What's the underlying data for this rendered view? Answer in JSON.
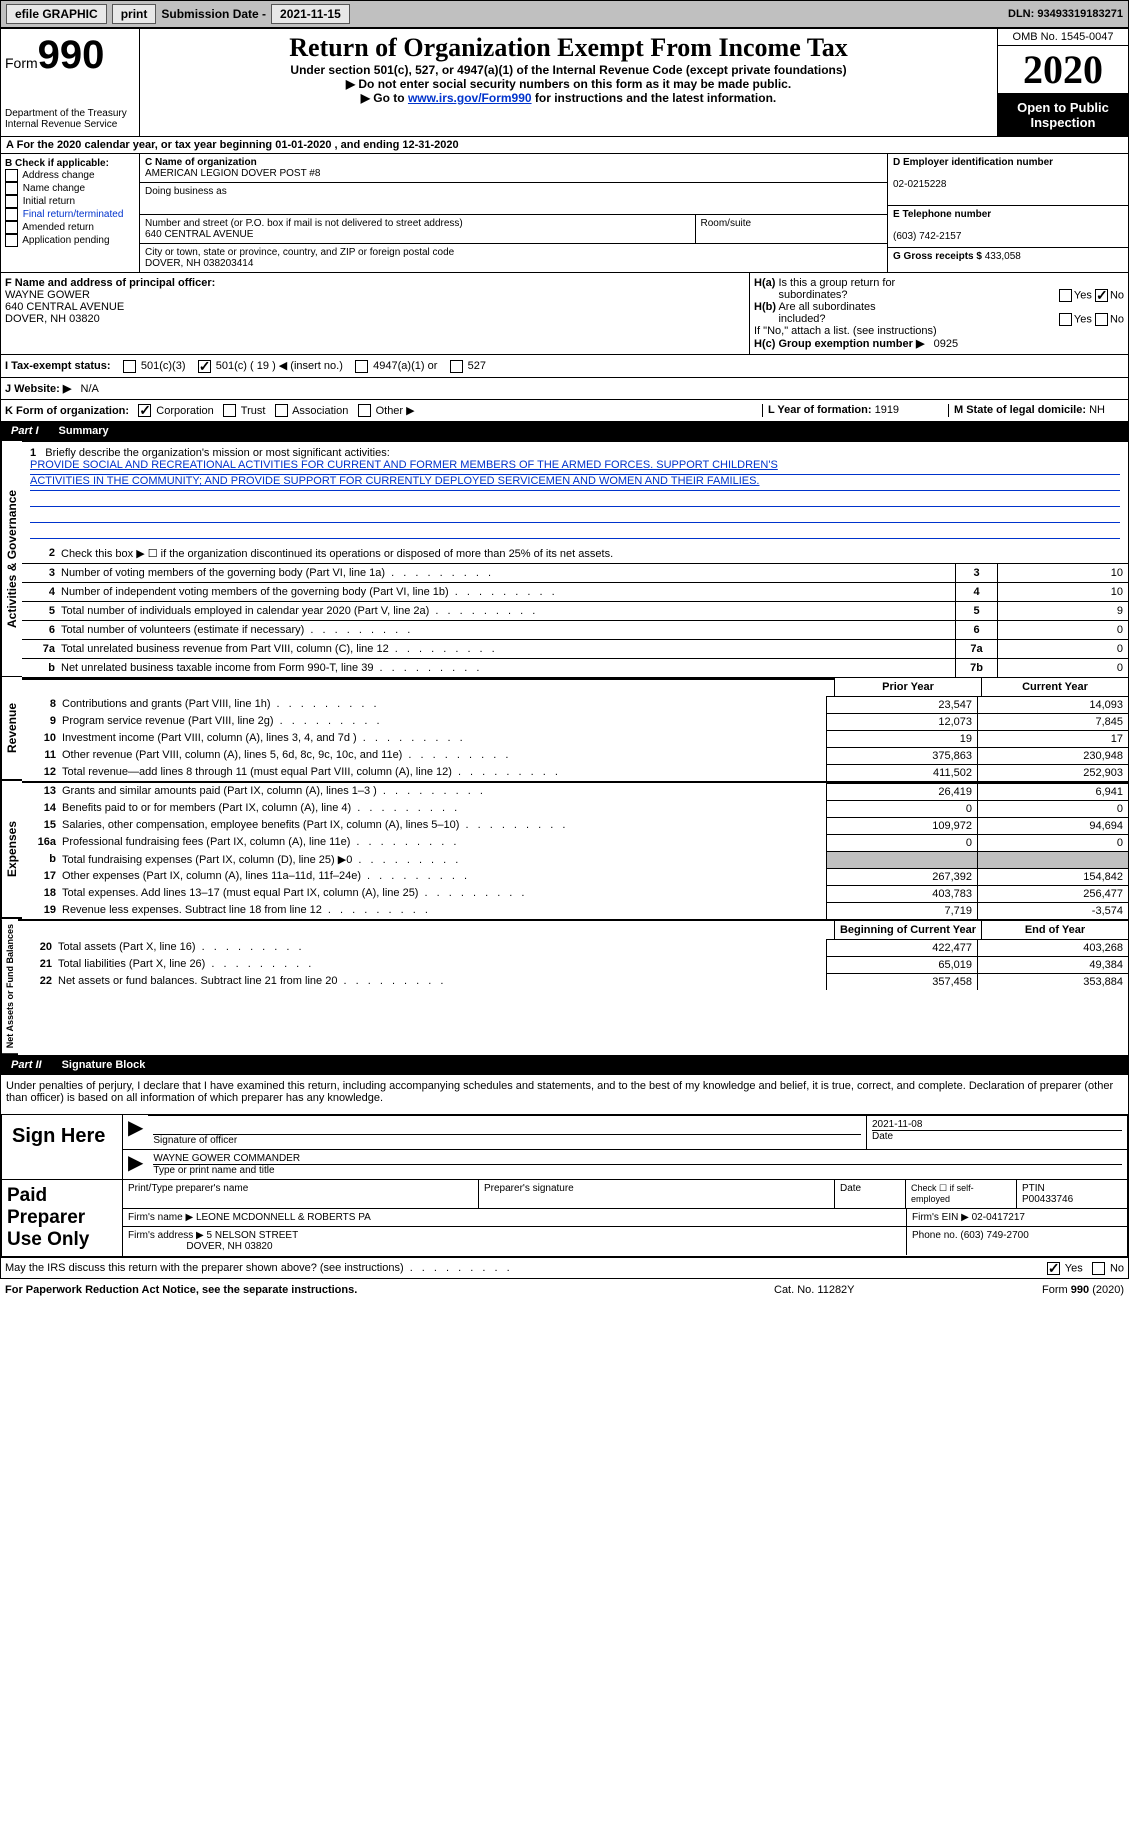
{
  "topbar": {
    "efile": "efile GRAPHIC",
    "print": "print",
    "subdate_label": "Submission Date -",
    "subdate": "2021-11-15",
    "dln_label": "DLN:",
    "dln": "93493319183271"
  },
  "header": {
    "form_word": "Form",
    "form_num": "990",
    "dept": "Department of the Treasury\nInternal Revenue Service",
    "title": "Return of Organization Exempt From Income Tax",
    "sub1": "Under section 501(c), 527, or 4947(a)(1) of the Internal Revenue Code (except private foundations)",
    "sub2": "▶ Do not enter social security numbers on this form as it may be made public.",
    "sub3_pre": "▶ Go to ",
    "sub3_link": "www.irs.gov/Form990",
    "sub3_post": " for instructions and the latest information.",
    "omb": "OMB No. 1545-0047",
    "year": "2020",
    "openpublic": "Open to Public Inspection"
  },
  "period": {
    "line": "For the 2020 calendar year, or tax year beginning 01-01-2020   , and ending 12-31-2020",
    "a_label": "A"
  },
  "boxB": {
    "label": "B Check if applicable:",
    "opts": [
      "Address change",
      "Name change",
      "Initial return",
      "Final return/terminated",
      "Amended return",
      "Application pending"
    ]
  },
  "boxC": {
    "name_label": "C Name of organization",
    "name": "AMERICAN LEGION DOVER POST #8",
    "dba_label": "Doing business as",
    "addr_label": "Number and street (or P.O. box if mail is not delivered to street address)",
    "room_label": "Room/suite",
    "addr": "640 CENTRAL AVENUE",
    "city_label": "City or town, state or province, country, and ZIP or foreign postal code",
    "city": "DOVER, NH  038203414"
  },
  "boxD": {
    "ein_label": "D Employer identification number",
    "ein": "02-0215228",
    "phone_label": "E Telephone number",
    "phone": "(603) 742-2157",
    "gross_label": "G Gross receipts $",
    "gross": "433,058"
  },
  "boxF": {
    "label": "F Name and address of principal officer:",
    "name": "WAYNE GOWER",
    "addr1": "640 CENTRAL AVENUE",
    "addr2": "DOVER, NH  03820"
  },
  "boxH": {
    "a_label": "H(a)  Is this a group return for subordinates?",
    "b_label": "H(b)  Are all subordinates included?",
    "b_note": "If \"No,\" attach a list. (see instructions)",
    "c_label": "H(c)  Group exemption number ▶",
    "c_val": "0925",
    "yes": "Yes",
    "no": "No"
  },
  "lineI": {
    "label": "I    Tax-exempt status:",
    "opt1": "501(c)(3)",
    "opt2_pre": "501(c) (",
    "opt2_val": "19",
    "opt2_post": ") ◀ (insert no.)",
    "opt3": "4947(a)(1) or",
    "opt4": "527"
  },
  "lineJ": {
    "label": "J   Website: ▶",
    "val": "N/A"
  },
  "lineK": {
    "label": "K Form of organization:",
    "opts": [
      "Corporation",
      "Trust",
      "Association",
      "Other ▶"
    ],
    "L_label": "L Year of formation:",
    "L_val": "1919",
    "M_label": "M State of legal domicile:",
    "M_val": "NH"
  },
  "partI": {
    "part": "Part I",
    "title": "Summary"
  },
  "mission": {
    "num": "1",
    "label": "Briefly describe the organization's mission or most significant activities:",
    "line1": "PROVIDE SOCIAL AND RECREATIONAL ACTIVITIES FOR CURRENT AND FORMER MEMBERS OF THE ARMED FORCES. SUPPORT CHILDREN'S",
    "line2": "ACTIVITIES IN THE COMMUNITY; AND PROVIDE SUPPORT FOR CURRENTLY DEPLOYED SERVICEMEN AND WOMEN AND THEIR FAMILIES."
  },
  "gov_lines": [
    {
      "n": "2",
      "desc": "Check this box ▶ ☐ if the organization discontinued its operations or disposed of more than 25% of its net assets.",
      "box": "",
      "val": ""
    },
    {
      "n": "3",
      "desc": "Number of voting members of the governing body (Part VI, line 1a)",
      "box": "3",
      "val": "10"
    },
    {
      "n": "4",
      "desc": "Number of independent voting members of the governing body (Part VI, line 1b)",
      "box": "4",
      "val": "10"
    },
    {
      "n": "5",
      "desc": "Total number of individuals employed in calendar year 2020 (Part V, line 2a)",
      "box": "5",
      "val": "9"
    },
    {
      "n": "6",
      "desc": "Total number of volunteers (estimate if necessary)",
      "box": "6",
      "val": "0"
    },
    {
      "n": "7a",
      "desc": "Total unrelated business revenue from Part VIII, column (C), line 12",
      "box": "7a",
      "val": "0"
    },
    {
      "n": "b",
      "desc": "Net unrelated business taxable income from Form 990-T, line 39",
      "box": "7b",
      "val": "0"
    }
  ],
  "rev_header": {
    "prior": "Prior Year",
    "current": "Current Year"
  },
  "revenue_label": "Revenue",
  "revenue": [
    {
      "n": "8",
      "desc": "Contributions and grants (Part VIII, line 1h)",
      "p": "23,547",
      "c": "14,093"
    },
    {
      "n": "9",
      "desc": "Program service revenue (Part VIII, line 2g)",
      "p": "12,073",
      "c": "7,845"
    },
    {
      "n": "10",
      "desc": "Investment income (Part VIII, column (A), lines 3, 4, and 7d )",
      "p": "19",
      "c": "17"
    },
    {
      "n": "11",
      "desc": "Other revenue (Part VIII, column (A), lines 5, 6d, 8c, 9c, 10c, and 11e)",
      "p": "375,863",
      "c": "230,948"
    },
    {
      "n": "12",
      "desc": "Total revenue—add lines 8 through 11 (must equal Part VIII, column (A), line 12)",
      "p": "411,502",
      "c": "252,903"
    }
  ],
  "expenses_label": "Expenses",
  "expenses": [
    {
      "n": "13",
      "desc": "Grants and similar amounts paid (Part IX, column (A), lines 1–3 )",
      "p": "26,419",
      "c": "6,941"
    },
    {
      "n": "14",
      "desc": "Benefits paid to or for members (Part IX, column (A), line 4)",
      "p": "0",
      "c": "0"
    },
    {
      "n": "15",
      "desc": "Salaries, other compensation, employee benefits (Part IX, column (A), lines 5–10)",
      "p": "109,972",
      "c": "94,694"
    },
    {
      "n": "16a",
      "desc": "Professional fundraising fees (Part IX, column (A), line 11e)",
      "p": "0",
      "c": "0"
    },
    {
      "n": "b",
      "desc": "Total fundraising expenses (Part IX, column (D), line 25) ▶0",
      "p": "",
      "c": "",
      "gray": true
    },
    {
      "n": "17",
      "desc": "Other expenses (Part IX, column (A), lines 11a–11d, 11f–24e)",
      "p": "267,392",
      "c": "154,842"
    },
    {
      "n": "18",
      "desc": "Total expenses. Add lines 13–17 (must equal Part IX, column (A), line 25)",
      "p": "403,783",
      "c": "256,477"
    },
    {
      "n": "19",
      "desc": "Revenue less expenses. Subtract line 18 from line 12",
      "p": "7,719",
      "c": "-3,574"
    }
  ],
  "net_header": {
    "begin": "Beginning of Current Year",
    "end": "End of Year"
  },
  "netassets_label": "Net Assets or Fund Balances",
  "netassets": [
    {
      "n": "20",
      "desc": "Total assets (Part X, line 16)",
      "p": "422,477",
      "c": "403,268"
    },
    {
      "n": "21",
      "desc": "Total liabilities (Part X, line 26)",
      "p": "65,019",
      "c": "49,384"
    },
    {
      "n": "22",
      "desc": "Net assets or fund balances. Subtract line 21 from line 20",
      "p": "357,458",
      "c": "353,884"
    }
  ],
  "partII": {
    "part": "Part II",
    "title": "Signature Block"
  },
  "penalties": "Under penalties of perjury, I declare that I have examined this return, including accompanying schedules and statements, and to the best of my knowledge and belief, it is true, correct, and complete. Declaration of preparer (other than officer) is based on all information of which preparer has any knowledge.",
  "sign": {
    "here": "Sign Here",
    "sig_label": "Signature of officer",
    "date_label": "Date",
    "date": "2021-11-08",
    "name": "WAYNE GOWER COMMANDER",
    "name_label": "Type or print name and title"
  },
  "preparer": {
    "label": "Paid Preparer Use Only",
    "col1": "Print/Type preparer's name",
    "col2": "Preparer's signature",
    "col3": "Date",
    "col4_a": "Check ☐ if self-employed",
    "col5_label": "PTIN",
    "col5": "P00433746",
    "firm_label": "Firm's name    ▶",
    "firm": "LEONE MCDONNELL & ROBERTS PA",
    "ein_label": "Firm's EIN ▶",
    "ein": "02-0417217",
    "addr_label": "Firm's address ▶",
    "addr1": "5 NELSON STREET",
    "addr2": "DOVER, NH  03820",
    "phone_label": "Phone no.",
    "phone": "(603) 749-2700"
  },
  "discuss": {
    "text": "May the IRS discuss this return with the preparer shown above? (see instructions)",
    "yes": "Yes",
    "no": "No"
  },
  "footer": {
    "left": "For Paperwork Reduction Act Notice, see the separate instructions.",
    "mid": "Cat. No. 11282Y",
    "right": "Form 990 (2020)"
  },
  "activities_label": "Activities & Governance"
}
